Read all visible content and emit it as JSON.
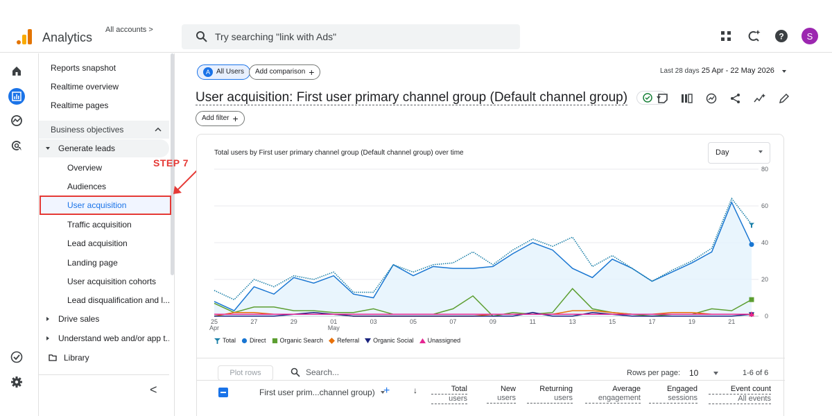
{
  "header": {
    "app_name": "Analytics",
    "accounts_label": "All accounts >",
    "search_placeholder": "Try searching \"link with Ads\"",
    "avatar_letter": "S",
    "colors": {
      "logo_orange": "#f9ab00",
      "logo_dark": "#e37400",
      "avatar": "#9c27b0"
    }
  },
  "nav": {
    "items": [
      {
        "label": "Reports snapshot",
        "level": 0
      },
      {
        "label": "Realtime overview",
        "level": 0
      },
      {
        "label": "Realtime pages",
        "level": 0
      },
      {
        "label": "Business objectives",
        "level": "section"
      },
      {
        "label": "Generate leads",
        "level": "group"
      },
      {
        "label": "Overview",
        "level": 1
      },
      {
        "label": "Audiences",
        "level": 1
      },
      {
        "label": "User acquisition",
        "level": 1,
        "selected": true
      },
      {
        "label": "Traffic acquisition",
        "level": 1
      },
      {
        "label": "Lead acquisition",
        "level": 1
      },
      {
        "label": "Landing page",
        "level": 1
      },
      {
        "label": "User acquisition cohorts",
        "level": 1
      },
      {
        "label": "Lead disqualification and l...",
        "level": 1
      },
      {
        "label": "Drive sales",
        "level": "group-collapsed"
      },
      {
        "label": "Understand web and/or app t...",
        "level": "group-collapsed"
      },
      {
        "label": "Library",
        "level": "library"
      }
    ],
    "collapse_glyph": "<"
  },
  "annotation": {
    "step_label": "STEP 7",
    "color": "#e53935"
  },
  "main": {
    "chip_all_users": "All Users",
    "chip_all_users_badge": "A",
    "chip_add_comparison": "Add comparison",
    "date_prefix": "Last 28 days",
    "date_range": "25 Apr - 22 May 2026",
    "title": "User acquisition: First user primary channel group (Default channel group)",
    "add_filter": "Add filter"
  },
  "card": {
    "title": "Total users by First user primary channel group (Default channel group) over time",
    "granularity": "Day"
  },
  "table": {
    "plot_rows": "Plot rows",
    "search_placeholder": "Search...",
    "rows_per_page_label": "Rows per page:",
    "rows_per_page_value": "10",
    "pagination": "1-6 of 6",
    "dimension": "First user prim...channel group)",
    "columns": [
      {
        "line1": "Total",
        "line2": "users"
      },
      {
        "line1": "New",
        "line2": "users"
      },
      {
        "line1": "Returning",
        "line2": "users"
      },
      {
        "line1": "Average",
        "line2": "engagement"
      },
      {
        "line1": "Engaged",
        "line2": "sessions"
      },
      {
        "line1": "Event count",
        "line2": "All events"
      }
    ]
  },
  "chart_data": {
    "type": "line",
    "title": "Total users by First user primary channel group (Default channel group) over time",
    "ylim": [
      0,
      80
    ],
    "y_ticks": [
      0,
      20,
      40,
      60,
      80
    ],
    "x_tick_labels": [
      {
        "day": 25,
        "label": "25",
        "sub": "Apr"
      },
      {
        "day": 27,
        "label": "27"
      },
      {
        "day": 29,
        "label": "29"
      },
      {
        "day": 31,
        "label": "01",
        "sub": "May"
      },
      {
        "day": 33,
        "label": "03"
      },
      {
        "day": 35,
        "label": "05"
      },
      {
        "day": 37,
        "label": "07"
      },
      {
        "day": 39,
        "label": "09"
      },
      {
        "day": 41,
        "label": "11"
      },
      {
        "day": 43,
        "label": "13"
      },
      {
        "day": 45,
        "label": "15"
      },
      {
        "day": 47,
        "label": "17"
      },
      {
        "day": 49,
        "label": "19"
      },
      {
        "day": 51,
        "label": "21"
      }
    ],
    "x": [
      "25 Apr",
      "26 Apr",
      "27 Apr",
      "28 Apr",
      "29 Apr",
      "30 Apr",
      "01 May",
      "02 May",
      "03 May",
      "04 May",
      "05 May",
      "06 May",
      "07 May",
      "08 May",
      "09 May",
      "10 May",
      "11 May",
      "12 May",
      "13 May",
      "14 May",
      "15 May",
      "16 May",
      "17 May",
      "18 May",
      "19 May",
      "20 May",
      "21 May",
      "22 May"
    ],
    "grid": true,
    "legend_position": "bottom-left",
    "series": [
      {
        "name": "Total",
        "color": "#1a7fa8",
        "style": "dotted",
        "marker": "pin",
        "values": [
          14,
          9,
          20,
          16,
          22,
          20,
          24,
          13,
          13,
          28,
          24,
          28,
          29,
          35,
          28,
          36,
          42,
          38,
          43,
          27,
          33,
          26,
          19,
          25,
          30,
          37,
          64,
          50
        ]
      },
      {
        "name": "Direct",
        "color": "#1976d2",
        "style": "area",
        "marker": "circle",
        "values": [
          8,
          3,
          16,
          12,
          21,
          18,
          22,
          12,
          10,
          28,
          22,
          27,
          26,
          26,
          27,
          34,
          40,
          36,
          26,
          21,
          31,
          26,
          19,
          24,
          29,
          35,
          62,
          39
        ]
      },
      {
        "name": "Organic Search",
        "color": "#5c9e31",
        "marker": "square",
        "values": [
          7,
          2,
          5,
          5,
          3,
          3,
          2,
          2,
          4,
          1,
          1,
          1,
          4,
          11,
          0,
          2,
          1,
          2,
          15,
          4,
          2,
          1,
          0,
          1,
          1,
          4,
          3,
          9
        ]
      },
      {
        "name": "Referral",
        "color": "#e8710a",
        "marker": "diamond",
        "values": [
          0,
          2,
          2,
          1,
          1,
          1,
          1,
          0,
          0,
          0,
          0,
          0,
          0,
          0,
          1,
          1,
          1,
          1,
          3,
          3,
          2,
          1,
          1,
          2,
          2,
          1,
          1,
          1
        ]
      },
      {
        "name": "Organic Social",
        "color": "#1a237e",
        "marker": "triangle-down",
        "values": [
          0,
          0,
          0,
          0,
          1,
          2,
          1,
          0,
          0,
          0,
          0,
          0,
          0,
          0,
          0,
          0,
          2,
          0,
          0,
          2,
          1,
          0,
          0,
          0,
          0,
          0,
          0,
          1
        ]
      },
      {
        "name": "Unassigned",
        "color": "#e52592",
        "marker": "triangle-up",
        "values": [
          1,
          1,
          1,
          1,
          1,
          1,
          1,
          1,
          1,
          1,
          1,
          1,
          1,
          1,
          1,
          1,
          1,
          1,
          1,
          1,
          1,
          1,
          1,
          1,
          1,
          1,
          1,
          1
        ]
      }
    ]
  }
}
